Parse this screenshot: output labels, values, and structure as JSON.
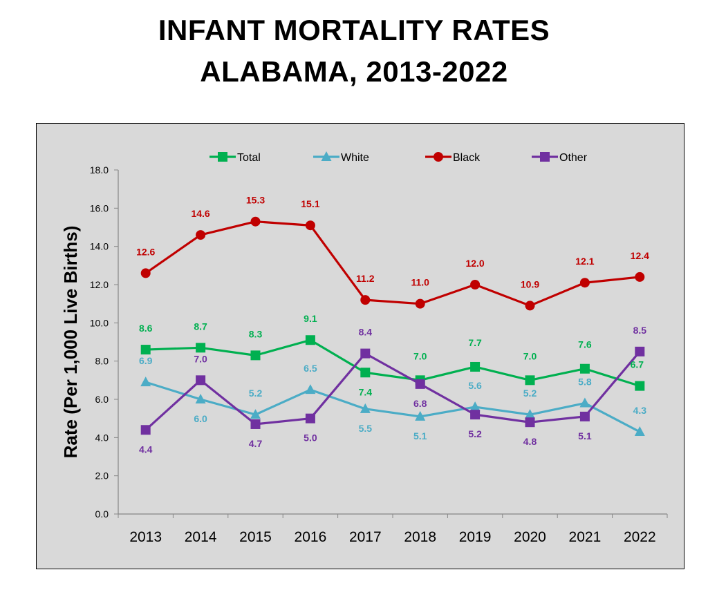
{
  "title_line1": "INFANT MORTALITY RATES",
  "title_line2": "ALABAMA, 2013-2022",
  "chart_data": {
    "type": "line",
    "x": [
      "2013",
      "2014",
      "2015",
      "2016",
      "2017",
      "2018",
      "2019",
      "2020",
      "2021",
      "2022"
    ],
    "ylabel": "Rate (Per 1,000 Live Births)",
    "xlabel": "",
    "ylim": [
      0,
      18
    ],
    "yticks": [
      "0.0",
      "2.0",
      "4.0",
      "6.0",
      "8.0",
      "10.0",
      "12.0",
      "14.0",
      "16.0",
      "18.0"
    ],
    "grid": false,
    "legend": "top",
    "series": [
      {
        "name": "Total",
        "color": "#00b050",
        "marker": "square",
        "values": [
          8.6,
          8.7,
          8.3,
          9.1,
          7.4,
          7.0,
          7.7,
          7.0,
          7.6,
          6.7
        ],
        "labels": [
          "8.6",
          "8.7",
          "8.3",
          "9.1",
          "7.4",
          "7.0",
          "7.7",
          "7.0",
          "7.6",
          "6.7"
        ]
      },
      {
        "name": "White",
        "color": "#4bacc6",
        "marker": "triangle",
        "values": [
          6.9,
          6.0,
          5.2,
          6.5,
          5.5,
          5.1,
          5.6,
          5.2,
          5.8,
          4.3
        ],
        "labels": [
          "6.9",
          "6.0",
          "5.2",
          "6.5",
          "5.5",
          "5.1",
          "5.6",
          "5.2",
          "5.8",
          "4.3"
        ]
      },
      {
        "name": "Black",
        "color": "#c00000",
        "marker": "circle",
        "values": [
          12.6,
          14.6,
          15.3,
          15.1,
          11.2,
          11.0,
          12.0,
          10.9,
          12.1,
          12.4
        ],
        "labels": [
          "12.6",
          "14.6",
          "15.3",
          "15.1",
          "11.2",
          "11.0",
          "12.0",
          "10.9",
          "12.1",
          "12.4"
        ]
      },
      {
        "name": "Other",
        "color": "#7030a0",
        "marker": "square",
        "values": [
          4.4,
          7.0,
          4.7,
          5.0,
          8.4,
          6.8,
          5.2,
          4.8,
          5.1,
          8.5
        ],
        "labels": [
          "4.4",
          "7.0",
          "4.7",
          "5.0",
          "8.4",
          "6.8",
          "5.2",
          "4.8",
          "5.1",
          "8.5"
        ]
      }
    ]
  }
}
